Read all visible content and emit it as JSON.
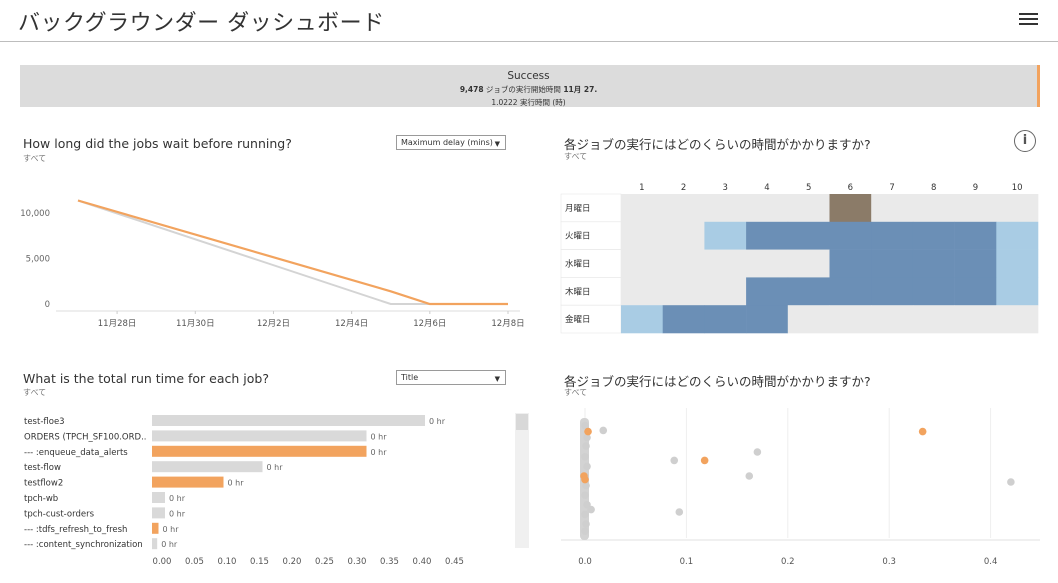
{
  "header": {
    "title": "バックグラウンダー ダッシュボード",
    "menu_icon": "hamburger-menu-icon"
  },
  "banner": {
    "status": "Success",
    "line1": {
      "count": "9,478",
      "text": " ジョブの実行開始時間 ",
      "date": "11月 27."
    },
    "line2": "1.0222 実行時間 (時)",
    "accent_color": "#f2a35e"
  },
  "wait_panel": {
    "title": "How long did the jobs wait before running?",
    "subtitle": "すべて",
    "dropdown": "Maximum delay (mins)",
    "chart_data": {
      "type": "line",
      "x": [
        "11月27日",
        "12月5日",
        "12月6日",
        "12月7日",
        "12月8日"
      ],
      "xticks": [
        "11月28日",
        "11月30日",
        "12月2日",
        "12月4日",
        "12月6日",
        "12月8日"
      ],
      "yticks": [
        "0",
        "5,000",
        "10,000"
      ],
      "ylim": [
        0,
        12000
      ],
      "series": [
        {
          "values": [
            11400,
            0,
            0,
            0,
            0
          ],
          "color": "#d4d4d4"
        },
        {
          "values": [
            11400,
            1400,
            0,
            0,
            0
          ],
          "color": "#f2a35e"
        }
      ],
      "grid": false
    }
  },
  "heatmap_panel": {
    "title": "各ジョブの実行にはどのくらいの時間がかかりますか?",
    "subtitle": "すべて",
    "info_icon": "info-icon",
    "info_text": "i",
    "chart_data": {
      "type": "heatmap",
      "columns": [
        "1",
        "2",
        "3",
        "4",
        "5",
        "6",
        "7",
        "8",
        "9",
        "10"
      ],
      "rows": [
        "月曜日",
        "火曜日",
        "水曜日",
        "木曜日",
        "金曜日"
      ],
      "values": [
        [
          0,
          0,
          0,
          0,
          0,
          3,
          0,
          0,
          0,
          0
        ],
        [
          0,
          0,
          1,
          2,
          2,
          2,
          2,
          2,
          2,
          1
        ],
        [
          0,
          0,
          0,
          0,
          0,
          2,
          2,
          2,
          2,
          1
        ],
        [
          0,
          0,
          0,
          2,
          2,
          2,
          2,
          2,
          2,
          1
        ],
        [
          1,
          2,
          2,
          2,
          0,
          0,
          0,
          0,
          0,
          0
        ]
      ],
      "colors": [
        "#eaeaea",
        "#a9cce4",
        "#6b8fb6",
        "#8b7b68"
      ]
    }
  },
  "runtime_panel": {
    "title": "What is the total run time for each job?",
    "subtitle": "すべて",
    "dropdown": "Title",
    "chart_data": {
      "type": "bar",
      "categories": [
        "test-floe3",
        "ORDERS (TPCH_SF100.ORD..",
        "--- :enqueue_data_alerts",
        "test-flow",
        "testflow2",
        "tpch-wb",
        "tpch-cust-orders",
        "--- :tdfs_refresh_to_fresh",
        "--- :content_synchronization"
      ],
      "values": [
        0.42,
        0.33,
        0.33,
        0.17,
        0.11,
        0.02,
        0.02,
        0.01,
        0.008
      ],
      "highlight": [
        false,
        false,
        true,
        false,
        true,
        false,
        false,
        true,
        false
      ],
      "data_label": "0 hr",
      "xticks": [
        "0.00",
        "0.05",
        "0.10",
        "0.15",
        "0.20",
        "0.25",
        "0.30",
        "0.35",
        "0.40",
        "0.45"
      ],
      "xlim": [
        0,
        0.47
      ],
      "colors": {
        "base": "#d9d9d9",
        "highlight": "#f2a35e"
      }
    }
  },
  "scatter_panel": {
    "title": "各ジョブの実行にはどのくらいの時間がかかりますか?",
    "subtitle": "すべて",
    "chart_data": {
      "type": "scatter",
      "xticks": [
        "0.0",
        "0.1",
        "0.2",
        "0.3",
        "0.4"
      ],
      "xlim": [
        -0.02,
        0.45
      ],
      "points": [
        {
          "x": 0.0,
          "y": 0.92,
          "hl": false
        },
        {
          "x": 0.002,
          "y": 0.82,
          "hl": false
        },
        {
          "x": 0.001,
          "y": 0.75,
          "hl": false
        },
        {
          "x": 0.0,
          "y": 0.66,
          "hl": false
        },
        {
          "x": 0.002,
          "y": 0.58,
          "hl": false
        },
        {
          "x": 0.0,
          "y": 0.5,
          "hl": false
        },
        {
          "x": 0.001,
          "y": 0.42,
          "hl": false
        },
        {
          "x": 0.0,
          "y": 0.34,
          "hl": false
        },
        {
          "x": 0.002,
          "y": 0.26,
          "hl": false
        },
        {
          "x": 0.0,
          "y": 0.18,
          "hl": false
        },
        {
          "x": 0.001,
          "y": 0.1,
          "hl": false
        },
        {
          "x": 0.0,
          "y": 0.04,
          "hl": false
        },
        {
          "x": 0.018,
          "y": 0.88,
          "hl": false
        },
        {
          "x": 0.006,
          "y": 0.22,
          "hl": false
        },
        {
          "x": 0.088,
          "y": 0.63,
          "hl": false
        },
        {
          "x": 0.17,
          "y": 0.7,
          "hl": false
        },
        {
          "x": 0.162,
          "y": 0.5,
          "hl": false
        },
        {
          "x": 0.093,
          "y": 0.2,
          "hl": false
        },
        {
          "x": 0.42,
          "y": 0.45,
          "hl": false
        },
        {
          "x": 0.003,
          "y": 0.87,
          "hl": true
        },
        {
          "x": 0.118,
          "y": 0.63,
          "hl": true
        },
        {
          "x": 0.333,
          "y": 0.87,
          "hl": true
        },
        {
          "x": -0.001,
          "y": 0.5,
          "hl": true
        },
        {
          "x": 0.0,
          "y": 0.47,
          "hl": true
        }
      ],
      "colors": {
        "base": "#cfcfcf",
        "highlight": "#f2a35e"
      }
    }
  }
}
